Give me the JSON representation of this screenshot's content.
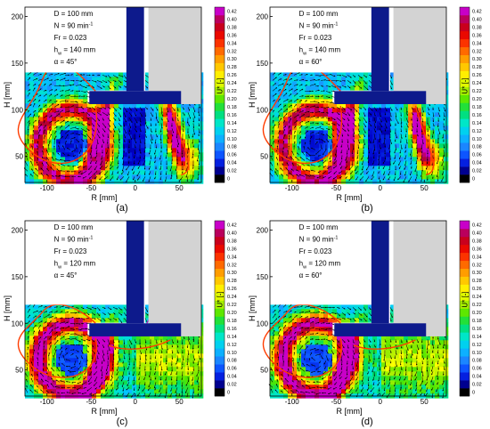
{
  "chart_data": [
    {
      "type": "heatmap",
      "panel_label": "(a)",
      "xlabel": "R [mm]",
      "ylabel": "H [mm]",
      "colorbar_label": "U* [-]",
      "xlim": [
        -125,
        75
      ],
      "ylim": [
        22,
        210
      ],
      "x_ticks": [
        "-100",
        "-50",
        "0",
        "50"
      ],
      "y_ticks": [
        "50",
        "100",
        "150",
        "200"
      ],
      "colorbar_ticks": [
        "0",
        "0.02",
        "0.04",
        "0.06",
        "0.08",
        "0.10",
        "0.12",
        "0.14",
        "0.16",
        "0.18",
        "0.20",
        "0.22",
        "0.24",
        "0.26",
        "0.28",
        "0.30",
        "0.32",
        "0.34",
        "0.36",
        "0.38",
        "0.40",
        "0.42"
      ],
      "colorbar_range": [
        0,
        0.42
      ],
      "parameters": [
        "D = 100 mm",
        "N = 90 min",
        "Fr = 0.023",
        "h = 140 mm",
        "α = 45°"
      ],
      "parameter_super": "-1",
      "parameter_sub": "w",
      "liquid_height_mm": 140,
      "blade_angle_deg": 45
    },
    {
      "type": "heatmap",
      "panel_label": "(b)",
      "xlabel": "R [mm]",
      "ylabel": "H [mm]",
      "colorbar_label": "U* [-]",
      "xlim": [
        -125,
        75
      ],
      "ylim": [
        22,
        210
      ],
      "x_ticks": [
        "-100",
        "-50",
        "0",
        "50"
      ],
      "y_ticks": [
        "50",
        "100",
        "150",
        "200"
      ],
      "colorbar_ticks": [
        "0",
        "0.02",
        "0.04",
        "0.06",
        "0.08",
        "0.10",
        "0.12",
        "0.14",
        "0.16",
        "0.18",
        "0.20",
        "0.22",
        "0.24",
        "0.26",
        "0.28",
        "0.30",
        "0.32",
        "0.34",
        "0.36",
        "0.38",
        "0.40",
        "0.42"
      ],
      "colorbar_range": [
        0,
        0.42
      ],
      "parameters": [
        "D = 100 mm",
        "N = 90 min",
        "Fr = 0.023",
        "h = 140 mm",
        "α = 60°"
      ],
      "parameter_super": "-1",
      "parameter_sub": "w",
      "liquid_height_mm": 140,
      "blade_angle_deg": 60
    },
    {
      "type": "heatmap",
      "panel_label": "(c)",
      "xlabel": "R [mm]",
      "ylabel": "H [mm]",
      "colorbar_label": "U* [-]",
      "xlim": [
        -125,
        75
      ],
      "ylim": [
        22,
        210
      ],
      "x_ticks": [
        "-100",
        "-50",
        "0",
        "50"
      ],
      "y_ticks": [
        "50",
        "100",
        "150",
        "200"
      ],
      "colorbar_ticks": [
        "0",
        "0.02",
        "0.04",
        "0.06",
        "0.08",
        "0.10",
        "0.12",
        "0.14",
        "0.16",
        "0.18",
        "0.20",
        "0.22",
        "0.24",
        "0.26",
        "0.28",
        "0.30",
        "0.32",
        "0.34",
        "0.36",
        "0.38",
        "0.40",
        "0.42"
      ],
      "colorbar_range": [
        0,
        0.42
      ],
      "parameters": [
        "D = 100 mm",
        "N = 90 min",
        "Fr = 0.023",
        "h = 120 mm",
        "α = 45°"
      ],
      "parameter_super": "-1",
      "parameter_sub": "w",
      "liquid_height_mm": 120,
      "blade_angle_deg": 45
    },
    {
      "type": "heatmap",
      "panel_label": "(d)",
      "xlabel": "R [mm]",
      "ylabel": "H [mm]",
      "colorbar_label": "U* [-]",
      "xlim": [
        -125,
        75
      ],
      "ylim": [
        22,
        210
      ],
      "x_ticks": [
        "-100",
        "-50",
        "0",
        "50"
      ],
      "y_ticks": [
        "50",
        "100",
        "150",
        "200"
      ],
      "colorbar_ticks": [
        "0",
        "0.02",
        "0.04",
        "0.06",
        "0.08",
        "0.10",
        "0.12",
        "0.14",
        "0.16",
        "0.18",
        "0.20",
        "0.22",
        "0.24",
        "0.26",
        "0.28",
        "0.30",
        "0.32",
        "0.34",
        "0.36",
        "0.38",
        "0.40",
        "0.42"
      ],
      "colorbar_range": [
        0,
        0.42
      ],
      "parameters": [
        "D = 100 mm",
        "N = 90 min",
        "Fr = 0.023",
        "h = 120 mm",
        "α = 60°"
      ],
      "parameter_super": "-1",
      "parameter_sub": "w",
      "liquid_height_mm": 120,
      "blade_angle_deg": 60
    }
  ],
  "colors": {
    "shaft": "#0d1a8c",
    "wall": "#d3d3d3",
    "colormap": [
      "#000000",
      "#0000c8",
      "#0a4bff",
      "#1e90ff",
      "#00c8ff",
      "#00e6c8",
      "#00dc64",
      "#50e600",
      "#b4f000",
      "#ffff00",
      "#ffc800",
      "#ff8c00",
      "#ff3c00",
      "#e60000",
      "#b40032",
      "#c800c8"
    ]
  }
}
